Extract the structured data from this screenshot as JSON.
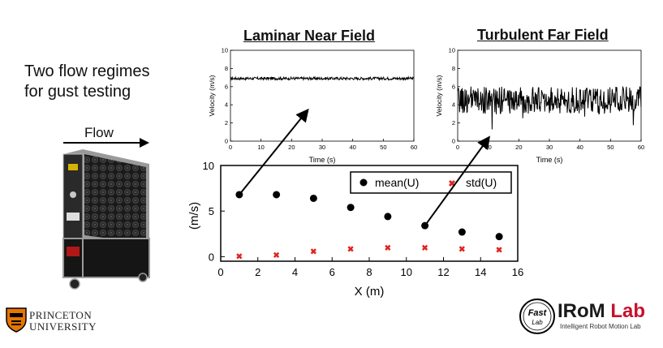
{
  "intro": {
    "line1": "Two flow regimes",
    "line2": "for gust testing"
  },
  "flow": {
    "label": "Flow"
  },
  "laminar_title": "Laminar Near Field",
  "turbulent_title": "Turbulent Far Field",
  "logos": {
    "princeton_line1": "PRINCETON",
    "princeton_line2": "UNIVERSITY",
    "irom": "IRoM Lab",
    "irom_sub": "Intelligent Robot Motion Lab",
    "fastlab_line1": "Fast",
    "fastlab_line2": "Lab"
  },
  "colors": {
    "accent_red": "#e0241f",
    "princeton_orange": "#e77500",
    "irom_red": "#c8102e"
  },
  "chart_data": [
    {
      "type": "line",
      "title": "Laminar Near Field",
      "xlabel": "Time (s)",
      "ylabel": "Velocity (m/s)",
      "xlim": [
        0,
        60
      ],
      "ylim": [
        0,
        10
      ],
      "xticks": [
        0,
        10,
        20,
        30,
        40,
        50,
        60
      ],
      "yticks": [
        0,
        2,
        4,
        6,
        8,
        10
      ],
      "series": [
        {
          "name": "velocity",
          "mean": 6.9,
          "amplitude": 0.15
        }
      ]
    },
    {
      "type": "line",
      "title": "Turbulent Far Field",
      "xlabel": "Time (s)",
      "ylabel": "Velocity (m/s)",
      "xlim": [
        0,
        60
      ],
      "ylim": [
        0,
        10
      ],
      "xticks": [
        0,
        10,
        20,
        30,
        40,
        50,
        60
      ],
      "yticks": [
        0,
        2,
        4,
        6,
        8,
        10
      ],
      "series": [
        {
          "name": "velocity",
          "mean": 4.5,
          "amplitude": 1.5
        }
      ]
    },
    {
      "type": "scatter",
      "xlabel": "X (m)",
      "ylabel": "(m/s)",
      "xlim": [
        0,
        16
      ],
      "ylim": [
        -0.5,
        10
      ],
      "xticks": [
        0,
        2,
        4,
        6,
        8,
        10,
        12,
        14,
        16
      ],
      "yticks": [
        0,
        5,
        10
      ],
      "legend_position": "top-right",
      "x": [
        1,
        3,
        5,
        7,
        9,
        11,
        13,
        15
      ],
      "series": [
        {
          "name": "mean(U)",
          "marker": "circle",
          "color": "#000000",
          "values": [
            6.8,
            6.8,
            6.4,
            5.4,
            4.4,
            3.4,
            2.7,
            2.2
          ]
        },
        {
          "name": "std(U)",
          "marker": "x",
          "color": "#e0241f",
          "values": [
            0.1,
            0.2,
            0.6,
            0.9,
            1.0,
            1.0,
            0.9,
            0.8
          ]
        }
      ],
      "annotations": [
        {
          "from": {
            "x": 1,
            "y": 6.8
          },
          "to_plot": "Laminar Near Field"
        },
        {
          "from": {
            "x": 11,
            "y": 3.4
          },
          "to_plot": "Turbulent Far Field"
        }
      ]
    }
  ]
}
